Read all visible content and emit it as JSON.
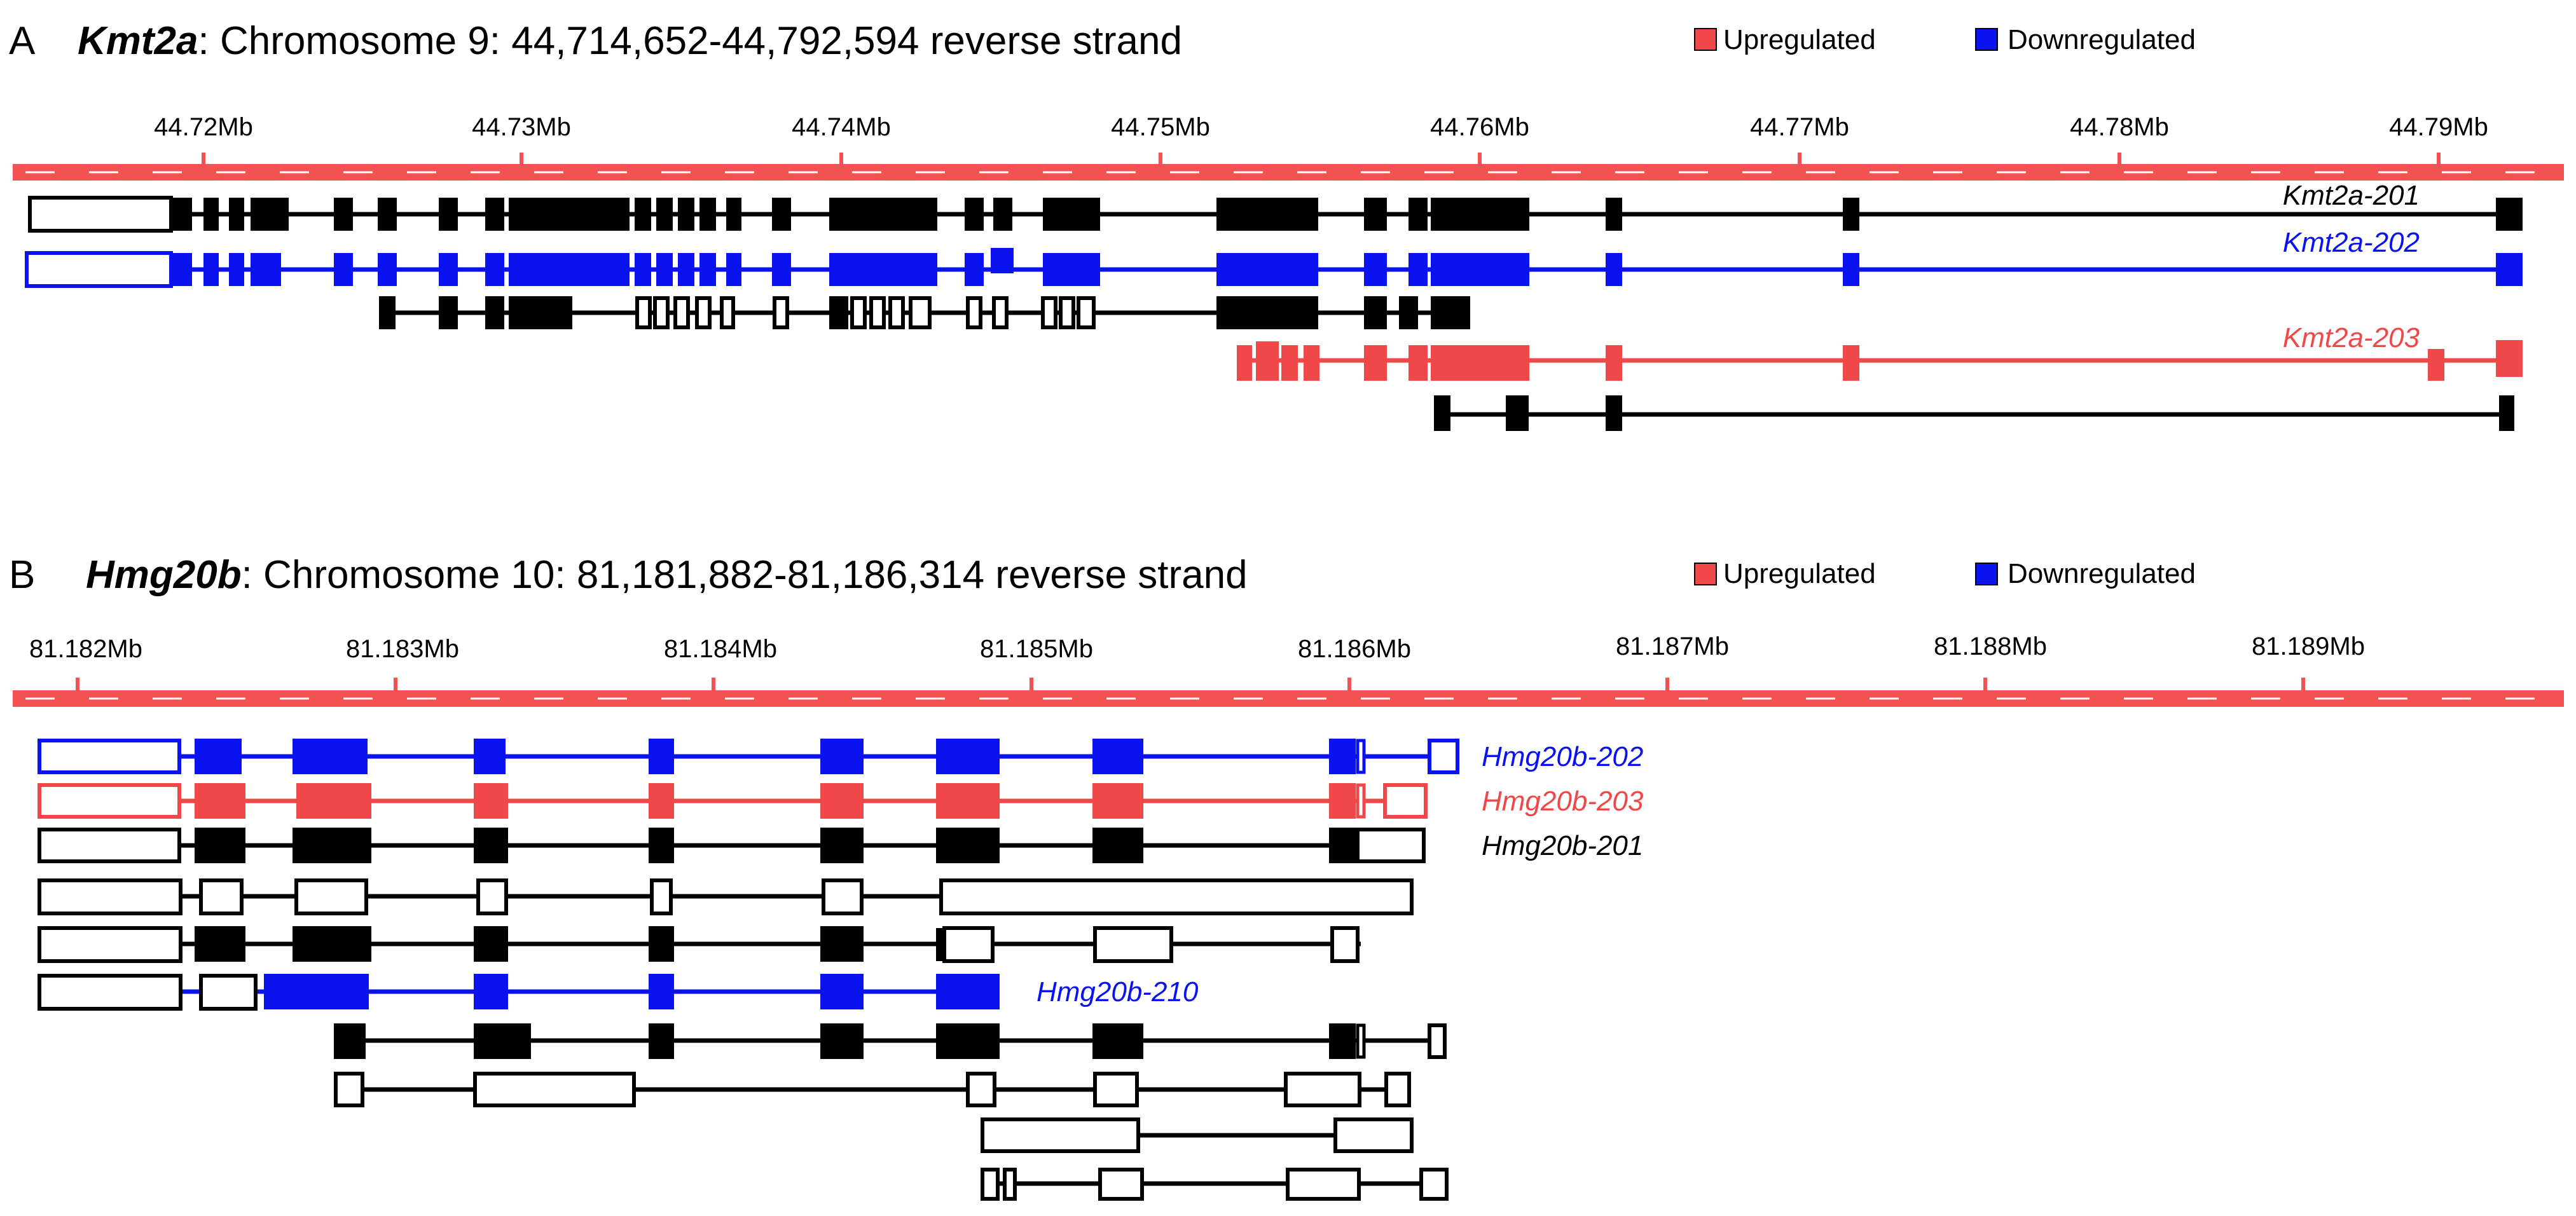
{
  "legend": {
    "up_label": "Upregulated",
    "down_label": "Downregulated"
  },
  "colors": {
    "up": "#f04848",
    "down": "#0a12f0",
    "neutral": "#000000",
    "ruler": "#f25252"
  },
  "panels": [
    {
      "letter": "A",
      "gene": "Kmt2a",
      "location": ": Chromosome 9: 44,714,652-44,792,594 reverse strand",
      "ticks": [
        "44.72Mb",
        "44.73Mb",
        "44.74Mb",
        "44.75Mb",
        "44.76Mb",
        "44.77Mb",
        "44.78Mb",
        "44.79Mb"
      ],
      "transcript_labels": [
        {
          "text": "Kmt2a-201",
          "status": "neutral"
        },
        {
          "text": "Kmt2a-202",
          "status": "down"
        },
        {
          "text": "Kmt2a-203",
          "status": "up"
        }
      ]
    },
    {
      "letter": "B",
      "gene": "Hmg20b",
      "location": ": Chromosome 10: 81,181,882-81,186,314 reverse strand",
      "ticks": [
        "81.182Mb",
        "81.183Mb",
        "81.184Mb",
        "81.185Mb",
        "81.186Mb",
        "81.187Mb",
        "81.188Mb",
        "81.189Mb"
      ],
      "transcript_labels": [
        {
          "text": "Hmg20b-202",
          "status": "down"
        },
        {
          "text": "Hmg20b-203",
          "status": "up"
        },
        {
          "text": "Hmg20b-201",
          "status": "neutral"
        },
        {
          "text": "Hmg20b-210",
          "status": "down"
        }
      ]
    }
  ]
}
